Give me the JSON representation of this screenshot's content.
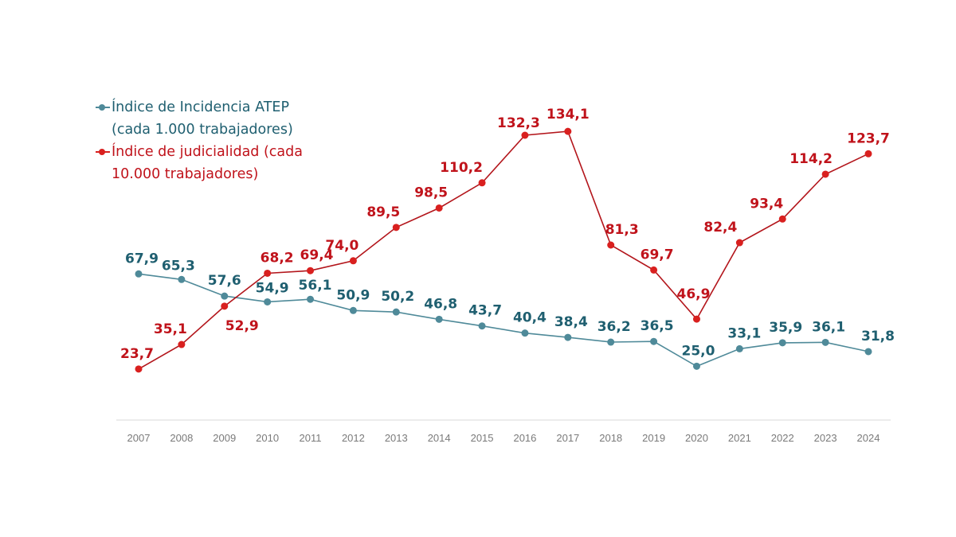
{
  "chart_data": {
    "type": "line",
    "title": "",
    "xlabel": "",
    "ylabel": "",
    "x": [
      "2007",
      "2008",
      "2009",
      "2010",
      "2011",
      "2012",
      "2013",
      "2014",
      "2015",
      "2016",
      "2017",
      "2018",
      "2019",
      "2020",
      "2021",
      "2022",
      "2023",
      "2024"
    ],
    "ylim": [
      0,
      140
    ],
    "grid": false,
    "legend_position": "top-left",
    "series": [
      {
        "name": "Índice de Incidencia ATEP (cada 1.000 trabajadores)",
        "legend_lines": [
          "Índice de Incidencia ATEP",
          "(cada 1.000 trabajadores)"
        ],
        "color": "#4f8a99",
        "label_color": "#1f5f70",
        "values": [
          67.9,
          65.3,
          57.6,
          54.9,
          56.1,
          50.9,
          50.2,
          46.8,
          43.7,
          40.4,
          38.4,
          36.2,
          36.5,
          25.0,
          33.1,
          35.9,
          36.1,
          31.8
        ],
        "labels": [
          "67,9",
          "65,3",
          "57,6",
          "54,9",
          "56,1",
          "50,9",
          "50,2",
          "46,8",
          "43,7",
          "40,4",
          "38,4",
          "36,2",
          "36,5",
          "25,0",
          "33,1",
          "35,9",
          "36,1",
          "31,8"
        ]
      },
      {
        "name": "Índice de judicialidad (cada 10.000 trabajadores)",
        "legend_lines": [
          "Índice de judicialidad (cada",
          "10.000 trabajadores)"
        ],
        "color": "#d9201f",
        "label_color": "#c0131b",
        "line_color": "#b3151b",
        "values": [
          23.7,
          35.1,
          52.9,
          68.2,
          69.4,
          74.0,
          89.5,
          98.5,
          110.2,
          132.3,
          134.1,
          81.3,
          69.7,
          46.9,
          82.4,
          93.4,
          114.2,
          123.7
        ],
        "labels": [
          "23,7",
          "35,1",
          "52,9",
          "68,2",
          "69,4",
          "74,0",
          "89,5",
          "98,5",
          "110,2",
          "132,3",
          "134,1",
          "81,3",
          "69,7",
          "46,9",
          "82,4",
          "93,4",
          "114,2",
          "123,7"
        ]
      }
    ]
  }
}
